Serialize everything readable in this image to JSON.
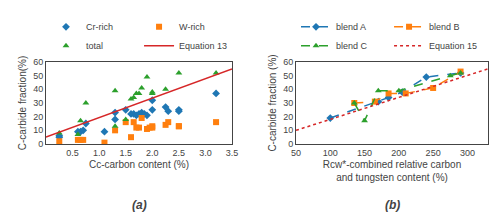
{
  "chart_data": [
    {
      "type": "scatter",
      "x_label": "Cc-carbon content (%)",
      "y_label": "C-carbide fraction(%)",
      "annotations": [
        "(a)"
      ],
      "series": [
        {
          "name": "Cr-rich",
          "type": "scatter",
          "marker": "diamond",
          "x": [
            0.25,
            0.25,
            0.6,
            0.65,
            0.7,
            0.75,
            1.1,
            1.3,
            1.3,
            1.5,
            1.6,
            1.65,
            1.7,
            1.75,
            1.8,
            1.85,
            1.9,
            2.0,
            2.0,
            2.25,
            2.3,
            2.5,
            2.5,
            3.2
          ],
          "values": [
            6,
            5,
            9,
            9,
            10,
            15,
            9,
            23,
            18,
            25,
            22,
            22,
            21,
            22,
            23,
            22,
            21,
            32,
            25,
            27,
            24,
            25,
            24,
            37
          ]
        },
        {
          "name": "W-rich",
          "type": "scatter",
          "marker": "square",
          "x": [
            0.25,
            0.6,
            0.65,
            0.7,
            1.1,
            1.3,
            1.5,
            1.6,
            1.65,
            1.7,
            1.75,
            1.8,
            1.9,
            1.95,
            2.0,
            2.0,
            2.25,
            2.3,
            2.5,
            2.5,
            3.2
          ],
          "values": [
            2,
            3,
            3,
            3,
            1,
            10,
            16,
            5,
            16,
            12,
            12,
            19,
            11,
            12,
            12,
            13,
            14,
            16,
            13,
            13,
            16
          ]
        },
        {
          "name": "total",
          "type": "scatter",
          "marker": "triangle",
          "x": [
            0.25,
            0.6,
            0.65,
            0.75,
            1.3,
            1.3,
            1.5,
            1.6,
            1.65,
            1.7,
            1.75,
            1.8,
            1.9,
            2.0,
            2.0,
            2.25,
            2.5,
            3.2
          ],
          "values": [
            8,
            7,
            17,
            30,
            39,
            13,
            18,
            33,
            34,
            37,
            37,
            41,
            49,
            37,
            38,
            40,
            52,
            52
          ]
        },
        {
          "name": "Equation 13",
          "type": "line",
          "line_style": "solid",
          "x": [
            0.0,
            3.5
          ],
          "values": [
            5,
            55
          ]
        }
      ],
      "xlim": [
        0.0,
        3.5
      ],
      "xticks": [
        0.5,
        {
          "value": 1.0,
          "label": "1.0"
        },
        1.5,
        {
          "value": 2.0,
          "label": "2.0"
        },
        2.5,
        {
          "value": 3.0,
          "label": "3.0"
        },
        3.5
      ],
      "ylim": [
        0,
        60
      ],
      "yticks": [
        0,
        10,
        20,
        30,
        40,
        50,
        60
      ],
      "grid": false,
      "legend": "top"
    },
    {
      "type": "line",
      "x_label": "Rcw*-combined relative carbon\nand tungsten content (%)",
      "y_label": "C-carbide fraction (%)",
      "annotations": [
        "(b)"
      ],
      "series": [
        {
          "name": "blend A",
          "type": "line",
          "marker": "diamond",
          "line_style": "dashed",
          "x": [
            100,
            170,
            185,
            205,
            240,
            290
          ],
          "values": [
            19,
            31,
            34,
            38,
            49,
            52
          ]
        },
        {
          "name": "blend B",
          "type": "line",
          "marker": "square",
          "line_style": "dashed",
          "x": [
            135,
            165,
            185,
            210,
            250,
            290
          ],
          "values": [
            30,
            31,
            37,
            37,
            41,
            53
          ]
        },
        {
          "name": "blend C",
          "type": "line",
          "marker": "triangle",
          "line_style": "dashed",
          "x": [
            135,
            150,
            170,
            200,
            275,
            290
          ],
          "values": [
            30,
            17,
            39,
            39,
            50,
            52
          ]
        },
        {
          "name": "Equation 15",
          "type": "line",
          "line_style": "dotted",
          "x": [
            50,
            330
          ],
          "values": [
            10,
            55
          ]
        }
      ],
      "xlim": [
        50,
        330
      ],
      "xticks": [
        50,
        100,
        150,
        200,
        250,
        300
      ],
      "ylim": [
        0,
        60
      ],
      "yticks": [
        0,
        10,
        20,
        30,
        40,
        50,
        60
      ],
      "grid": false,
      "legend": "top"
    }
  ]
}
